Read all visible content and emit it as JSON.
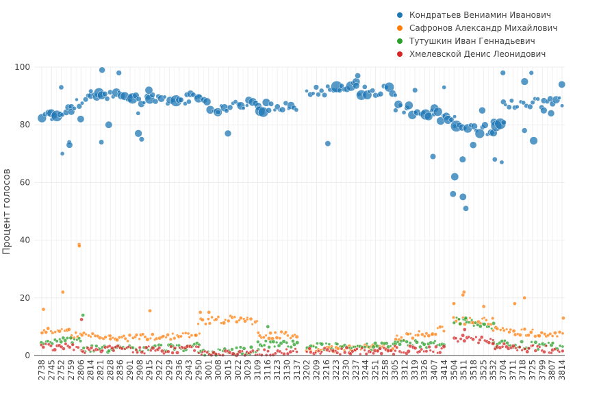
{
  "chart_data": {
    "type": "scatter",
    "title": "",
    "xlabel": "",
    "ylabel": "Процент голосов",
    "ylim": [
      0,
      100
    ],
    "y_ticks": [
      0,
      20,
      40,
      60,
      80,
      100
    ],
    "x_tick_labels": [
      "2738",
      "2745",
      "2752",
      "2759",
      "2806",
      "2814",
      "2821",
      "2828",
      "2836",
      "2901",
      "2908",
      "2915",
      "2922",
      "2929",
      "2936",
      "2943",
      "2950",
      "3001",
      "3008",
      "3015",
      "3022",
      "3029",
      "3109",
      "3116",
      "3123",
      "3130",
      "3137",
      "3202",
      "3209",
      "3216",
      "3223",
      "3230",
      "3237",
      "3244",
      "3251",
      "3258",
      "3305",
      "3312",
      "3319",
      "3326",
      "3407",
      "3414",
      "3504",
      "3511",
      "3518",
      "3525",
      "3532",
      "3704",
      "3711",
      "3718",
      "3725",
      "3799",
      "3807",
      "3814"
    ],
    "series": [
      {
        "name": "Кондратьев Вениамин Иванович",
        "color": "#1f77b4",
        "segments": [
          {
            "from": "2738",
            "to": "2745",
            "start": 83,
            "end": 83
          },
          {
            "from": "2745",
            "to": "2759",
            "start": 83,
            "end": 85
          },
          {
            "from": "2759",
            "to": "2814",
            "start": 86,
            "end": 90
          },
          {
            "from": "2814",
            "to": "2901",
            "start": 90,
            "end": 90
          },
          {
            "from": "2901",
            "to": "2950",
            "start": 89,
            "end": 89
          },
          {
            "from": "2950",
            "to": "3008",
            "start": 88,
            "end": 85
          },
          {
            "from": "3008",
            "to": "3109",
            "start": 86,
            "end": 87
          },
          {
            "from": "3109",
            "to": "3137",
            "start": 86,
            "end": 86
          },
          {
            "from": "3202",
            "to": "3223",
            "start": 92,
            "end": 92
          },
          {
            "from": "3223",
            "to": "3237",
            "start": 93,
            "end": 95
          },
          {
            "from": "3237",
            "to": "3305",
            "start": 92,
            "end": 92
          },
          {
            "from": "3305",
            "to": "3407",
            "start": 86,
            "end": 84
          },
          {
            "from": "3407",
            "to": "3504",
            "start": 83,
            "end": 82
          },
          {
            "from": "3504",
            "to": "3532",
            "start": 79,
            "end": 78
          },
          {
            "from": "3532",
            "to": "3704",
            "start": 82,
            "end": 80
          },
          {
            "from": "3704",
            "to": "3814",
            "start": 87,
            "end": 88
          }
        ],
        "outliers": [
          [
            "2752",
            93
          ],
          [
            "2752",
            70
          ],
          [
            "2759",
            74
          ],
          [
            "2759",
            73
          ],
          [
            "2806",
            82
          ],
          [
            "2821",
            99
          ],
          [
            "2821",
            74
          ],
          [
            "2828",
            80
          ],
          [
            "2836",
            98
          ],
          [
            "2908",
            77
          ],
          [
            "2908",
            75
          ],
          [
            "2908",
            84
          ],
          [
            "2915",
            92
          ],
          [
            "2943",
            88
          ],
          [
            "3015",
            77
          ],
          [
            "3216",
            73.5
          ],
          [
            "3237",
            97
          ],
          [
            "3319",
            92
          ],
          [
            "3407",
            69
          ],
          [
            "3414",
            93
          ],
          [
            "3504",
            62
          ],
          [
            "3504",
            56
          ],
          [
            "3511",
            51
          ],
          [
            "3511",
            55
          ],
          [
            "3511",
            68
          ],
          [
            "3518",
            73
          ],
          [
            "3525",
            85
          ],
          [
            "3532",
            68
          ],
          [
            "3704",
            67
          ],
          [
            "3704",
            98
          ],
          [
            "3718",
            95
          ],
          [
            "3718",
            78
          ],
          [
            "3725",
            98
          ],
          [
            "3725",
            74.5
          ],
          [
            "3799",
            85
          ],
          [
            "3807",
            84
          ],
          [
            "3814",
            94
          ]
        ]
      },
      {
        "name": "Сафронов Александр Михайлович",
        "color": "#ff7f0e",
        "segments": [
          {
            "from": "2738",
            "to": "2759",
            "start": 9,
            "end": 8
          },
          {
            "from": "2759",
            "to": "2828",
            "start": 7,
            "end": 6
          },
          {
            "from": "2828",
            "to": "2950",
            "start": 6,
            "end": 7
          },
          {
            "from": "2950",
            "to": "3029",
            "start": 12,
            "end": 13
          },
          {
            "from": "3029",
            "to": "3109",
            "start": 12,
            "end": 12
          },
          {
            "from": "3109",
            "to": "3137",
            "start": 7,
            "end": 7
          },
          {
            "from": "3202",
            "to": "3237",
            "start": 2.5,
            "end": 2.5
          },
          {
            "from": "3237",
            "to": "3305",
            "start": 2.5,
            "end": 3
          },
          {
            "from": "3305",
            "to": "3414",
            "start": 6,
            "end": 9
          },
          {
            "from": "3504",
            "to": "3532",
            "start": 12,
            "end": 12
          },
          {
            "from": "3532",
            "to": "3814",
            "start": 9,
            "end": 7
          }
        ],
        "outliers": [
          [
            "2738",
            16
          ],
          [
            "2752",
            22
          ],
          [
            "2806",
            38.5
          ],
          [
            "2806",
            38
          ],
          [
            "2915",
            15.5
          ],
          [
            "2950",
            15
          ],
          [
            "3001",
            15
          ],
          [
            "3504",
            18
          ],
          [
            "3511",
            22
          ],
          [
            "3511",
            21
          ],
          [
            "3525",
            17
          ],
          [
            "3711",
            18
          ],
          [
            "3718",
            20
          ],
          [
            "3814",
            13
          ]
        ]
      },
      {
        "name": "Тутушкин Иван Геннадьевич",
        "color": "#2ca02c",
        "segments": [
          {
            "from": "2738",
            "to": "2806",
            "start": 4,
            "end": 6
          },
          {
            "from": "2806",
            "to": "2950",
            "start": 2,
            "end": 3
          },
          {
            "from": "2950",
            "to": "3109",
            "start": 1,
            "end": 2
          },
          {
            "from": "3109",
            "to": "3137",
            "start": 4,
            "end": 4
          },
          {
            "from": "3202",
            "to": "3305",
            "start": 3,
            "end": 3
          },
          {
            "from": "3305",
            "to": "3414",
            "start": 4,
            "end": 4
          },
          {
            "from": "3504",
            "to": "3532",
            "start": 12,
            "end": 10
          },
          {
            "from": "3532",
            "to": "3814",
            "start": 4,
            "end": 3
          }
        ],
        "outliers": [
          [
            "2806",
            14
          ],
          [
            "3116",
            10
          ],
          [
            "3511",
            13
          ]
        ]
      },
      {
        "name": "Хмелевской Денис Леонидович",
        "color": "#d62728",
        "segments": [
          {
            "from": "2738",
            "to": "2806",
            "start": 3,
            "end": 3
          },
          {
            "from": "2806",
            "to": "2950",
            "start": 2,
            "end": 2
          },
          {
            "from": "2950",
            "to": "3109",
            "start": 0.5,
            "end": 0.5
          },
          {
            "from": "3109",
            "to": "3137",
            "start": 1,
            "end": 1
          },
          {
            "from": "3202",
            "to": "3305",
            "start": 1.5,
            "end": 1.5
          },
          {
            "from": "3305",
            "to": "3414",
            "start": 2,
            "end": 2
          },
          {
            "from": "3504",
            "to": "3532",
            "start": 6,
            "end": 5
          },
          {
            "from": "3532",
            "to": "3814",
            "start": 3,
            "end": 2
          }
        ],
        "outliers": [
          [
            "2806",
            12.5
          ],
          [
            "3511",
            9
          ]
        ]
      }
    ]
  }
}
